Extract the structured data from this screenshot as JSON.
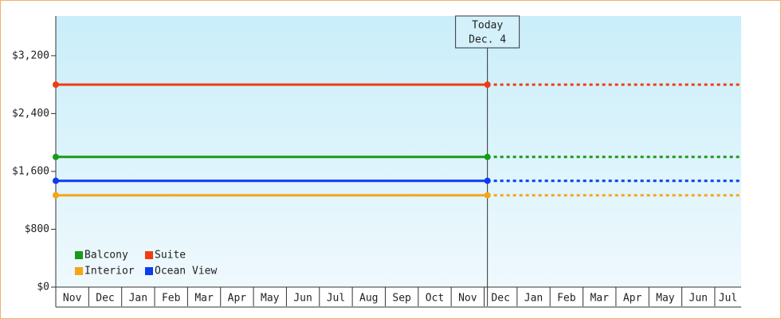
{
  "chart_data": {
    "type": "line",
    "categories": [
      "Nov",
      "Dec",
      "Jan",
      "Feb",
      "Mar",
      "Apr",
      "May",
      "Jun",
      "Jul",
      "Aug",
      "Sep",
      "Oct",
      "Nov",
      "Dec",
      "Jan",
      "Feb",
      "Mar",
      "Apr",
      "May",
      "Jun",
      "Jul"
    ],
    "xlim": [
      0,
      20.8
    ],
    "x": [
      0,
      13.1
    ],
    "ylim": [
      0,
      3750
    ],
    "yticks": [
      {
        "value": 0,
        "label": "$0"
      },
      {
        "value": 800,
        "label": "$800"
      },
      {
        "value": 1600,
        "label": "$1,600"
      },
      {
        "value": 2400,
        "label": "$2,400"
      },
      {
        "value": 3200,
        "label": "$3,200"
      }
    ],
    "today": {
      "label": "Today",
      "date": "Dec. 4"
    },
    "legend": "bottom-left",
    "series": [
      {
        "name": "Balcony",
        "color": "#1a9a1a",
        "values": [
          1800,
          1800
        ]
      },
      {
        "name": "Suite",
        "color": "#f03c14",
        "values": [
          2800,
          2800
        ]
      },
      {
        "name": "Interior",
        "color": "#f5a516",
        "values": [
          1270,
          1270
        ]
      },
      {
        "name": "Ocean View",
        "color": "#0a3cf0",
        "values": [
          1470,
          1470
        ]
      }
    ]
  }
}
